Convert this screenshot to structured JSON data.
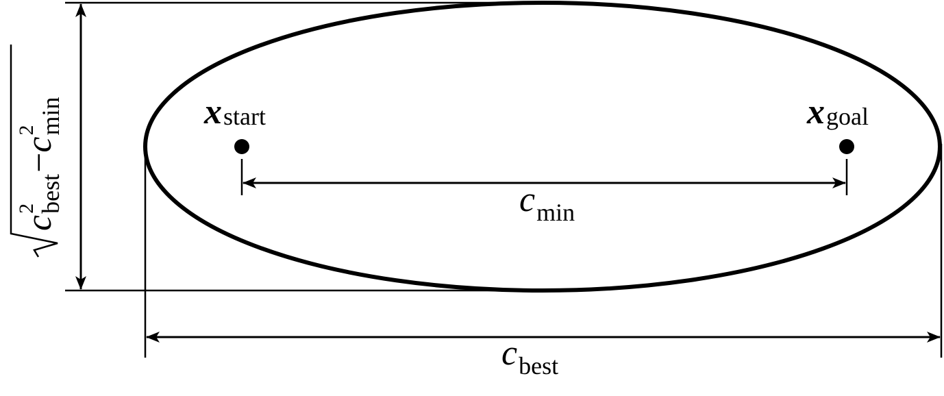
{
  "labels": {
    "start": {
      "symbol": "x",
      "subscript": "start"
    },
    "goal": {
      "symbol": "x",
      "subscript": "goal"
    },
    "min_distance": {
      "symbol": "c",
      "subscript": "min"
    },
    "best_cost": {
      "symbol": "c",
      "subscript": "best"
    },
    "height": {
      "term1": {
        "symbol": "c",
        "superscript": "2",
        "subscript": "best"
      },
      "operator": "−",
      "term2": {
        "symbol": "c",
        "superscript": "2",
        "subscript": "min"
      }
    }
  }
}
